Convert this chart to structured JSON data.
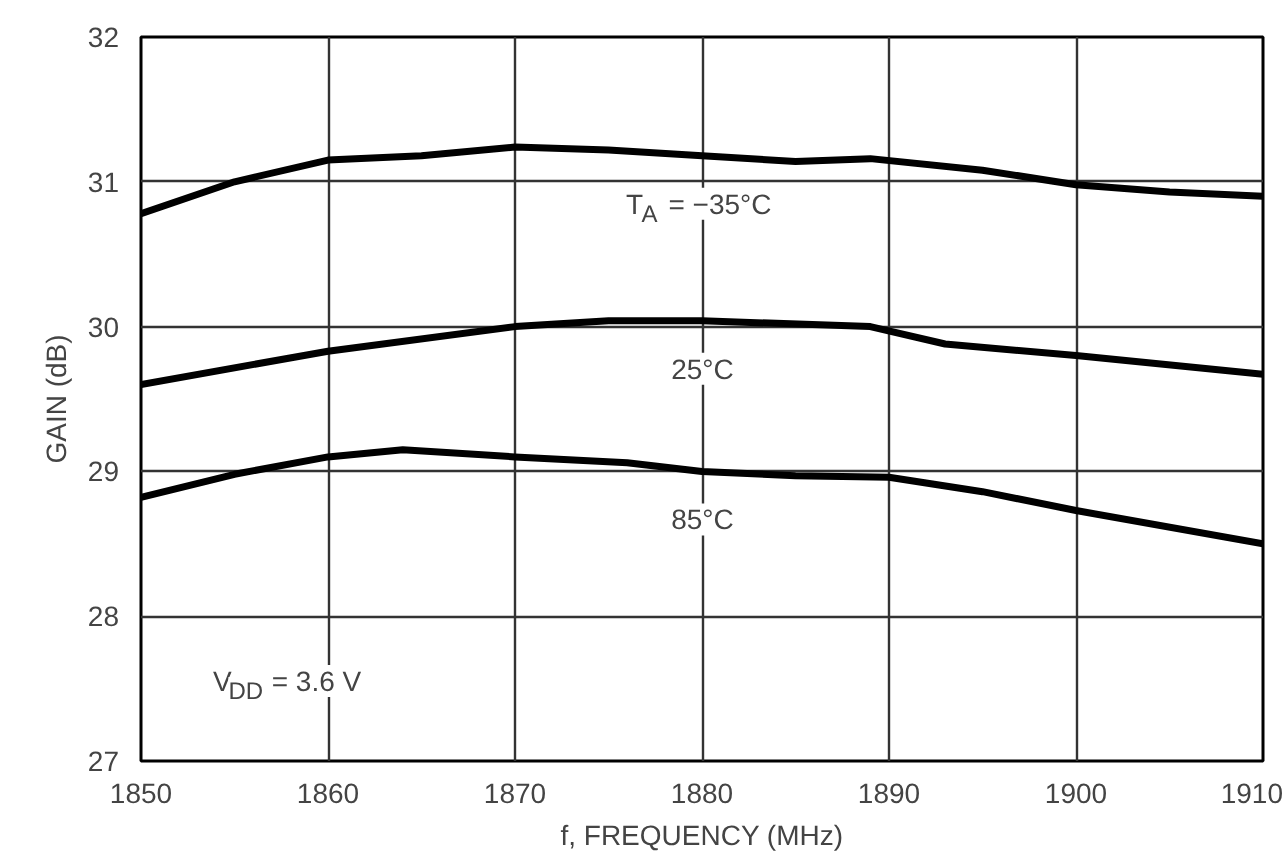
{
  "chart_data": {
    "type": "line",
    "xlabel": "f, FREQUENCY (MHz)",
    "ylabel": "GAIN (dB)",
    "xlim": [
      1850,
      1910
    ],
    "xticks": [
      1850,
      1860,
      1870,
      1880,
      1890,
      1900,
      1910
    ],
    "ylim": [
      27,
      32
    ],
    "yticks": [
      27,
      28,
      29,
      30,
      31,
      32
    ],
    "grid": true,
    "marker": "none",
    "line_style": "solid",
    "series": [
      {
        "name": "T$_{A}$ = −35°C",
        "color": "#000000",
        "x": [
          1850,
          1855,
          1860,
          1865,
          1870,
          1875,
          1880,
          1885,
          1889,
          1895,
          1900,
          1905,
          1910
        ],
        "values": [
          30.78,
          31.0,
          31.15,
          31.18,
          31.24,
          31.22,
          31.18,
          31.14,
          31.16,
          31.08,
          30.98,
          30.93,
          30.9
        ]
      },
      {
        "name": "25°C",
        "color": "#000000",
        "x": [
          1850,
          1860,
          1870,
          1875,
          1880,
          1889,
          1893,
          1900,
          1910
        ],
        "values": [
          29.6,
          29.83,
          30.0,
          30.04,
          30.04,
          30.0,
          29.88,
          29.8,
          29.67
        ]
      },
      {
        "name": "85°C",
        "color": "#000000",
        "x": [
          1850,
          1855,
          1860,
          1864,
          1870,
          1876,
          1880,
          1885,
          1890,
          1895,
          1900,
          1910
        ],
        "values": [
          28.82,
          28.98,
          29.1,
          29.15,
          29.1,
          29.06,
          29.0,
          28.97,
          28.96,
          28.86,
          28.73,
          28.5
        ]
      }
    ],
    "annotations": [
      "V$_{DD}$ = 3.6 V"
    ]
  }
}
